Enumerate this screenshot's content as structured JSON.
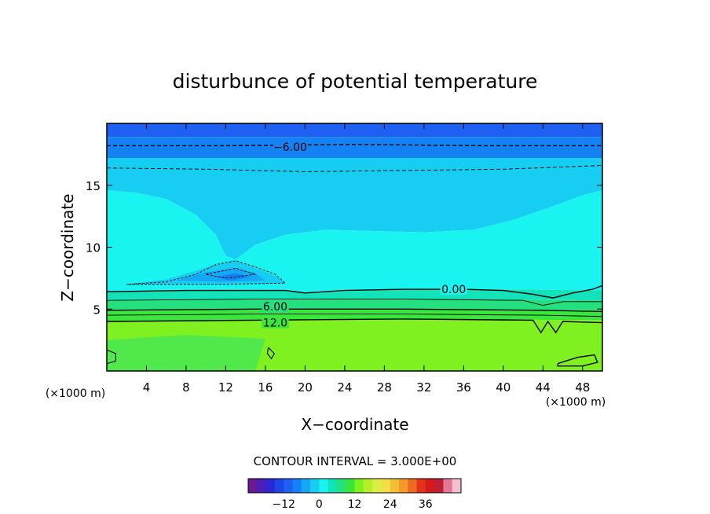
{
  "chart_data": {
    "type": "heatmap",
    "title": "disturbunce of potential temperature",
    "xlabel": "X−coordinate",
    "ylabel": "Z−coordinate",
    "x_unit_label": "(×1000 m)",
    "xlim": [
      0,
      50
    ],
    "ylim": [
      0,
      20
    ],
    "x_ticks": [
      4,
      8,
      12,
      16,
      20,
      24,
      28,
      32,
      36,
      40,
      44,
      48
    ],
    "y_ticks": [
      5,
      10,
      15
    ],
    "contour_labels": [
      {
        "text": "−6.00",
        "x": 18.5,
        "z": 18.1
      },
      {
        "text": "0.00",
        "x": 35.0,
        "z": 6.6
      },
      {
        "text": "6.00",
        "x": 17.0,
        "z": 5.2
      },
      {
        "text": "12.0",
        "x": 17.0,
        "z": 3.9
      }
    ],
    "contour_interval_text": "CONTOUR INTERVAL = 3.000E+00",
    "colorbar": {
      "min": -24,
      "max": 48,
      "step": 3,
      "tick_values": [
        -12,
        0,
        12,
        24,
        36
      ],
      "tick_labels": [
        "−12",
        "0",
        "12",
        "24",
        "36"
      ]
    },
    "color_scale": {
      "-24": "#6a1a8e",
      "-21": "#4b1eb5",
      "-18": "#2a28d6",
      "-15": "#1c46e8",
      "-12": "#1f60f2",
      "-9": "#1482f5",
      "-6": "#14a8f5",
      "-3": "#18cdf2",
      "0": "#19f4f0",
      "3": "#13e3b8",
      "6": "#25e07e",
      "9": "#38e63c",
      "12": "#7ff020",
      "15": "#b4f02a",
      "18": "#dcee46",
      "21": "#f2de46",
      "24": "#f3c033",
      "27": "#f39a2a",
      "30": "#ed6a20",
      "33": "#e33218",
      "36": "#d8191b",
      "39": "#bf1f35",
      "42": "#e37896",
      "45": "#f2c0d0"
    },
    "grid": false,
    "legend": "bottom-center"
  }
}
